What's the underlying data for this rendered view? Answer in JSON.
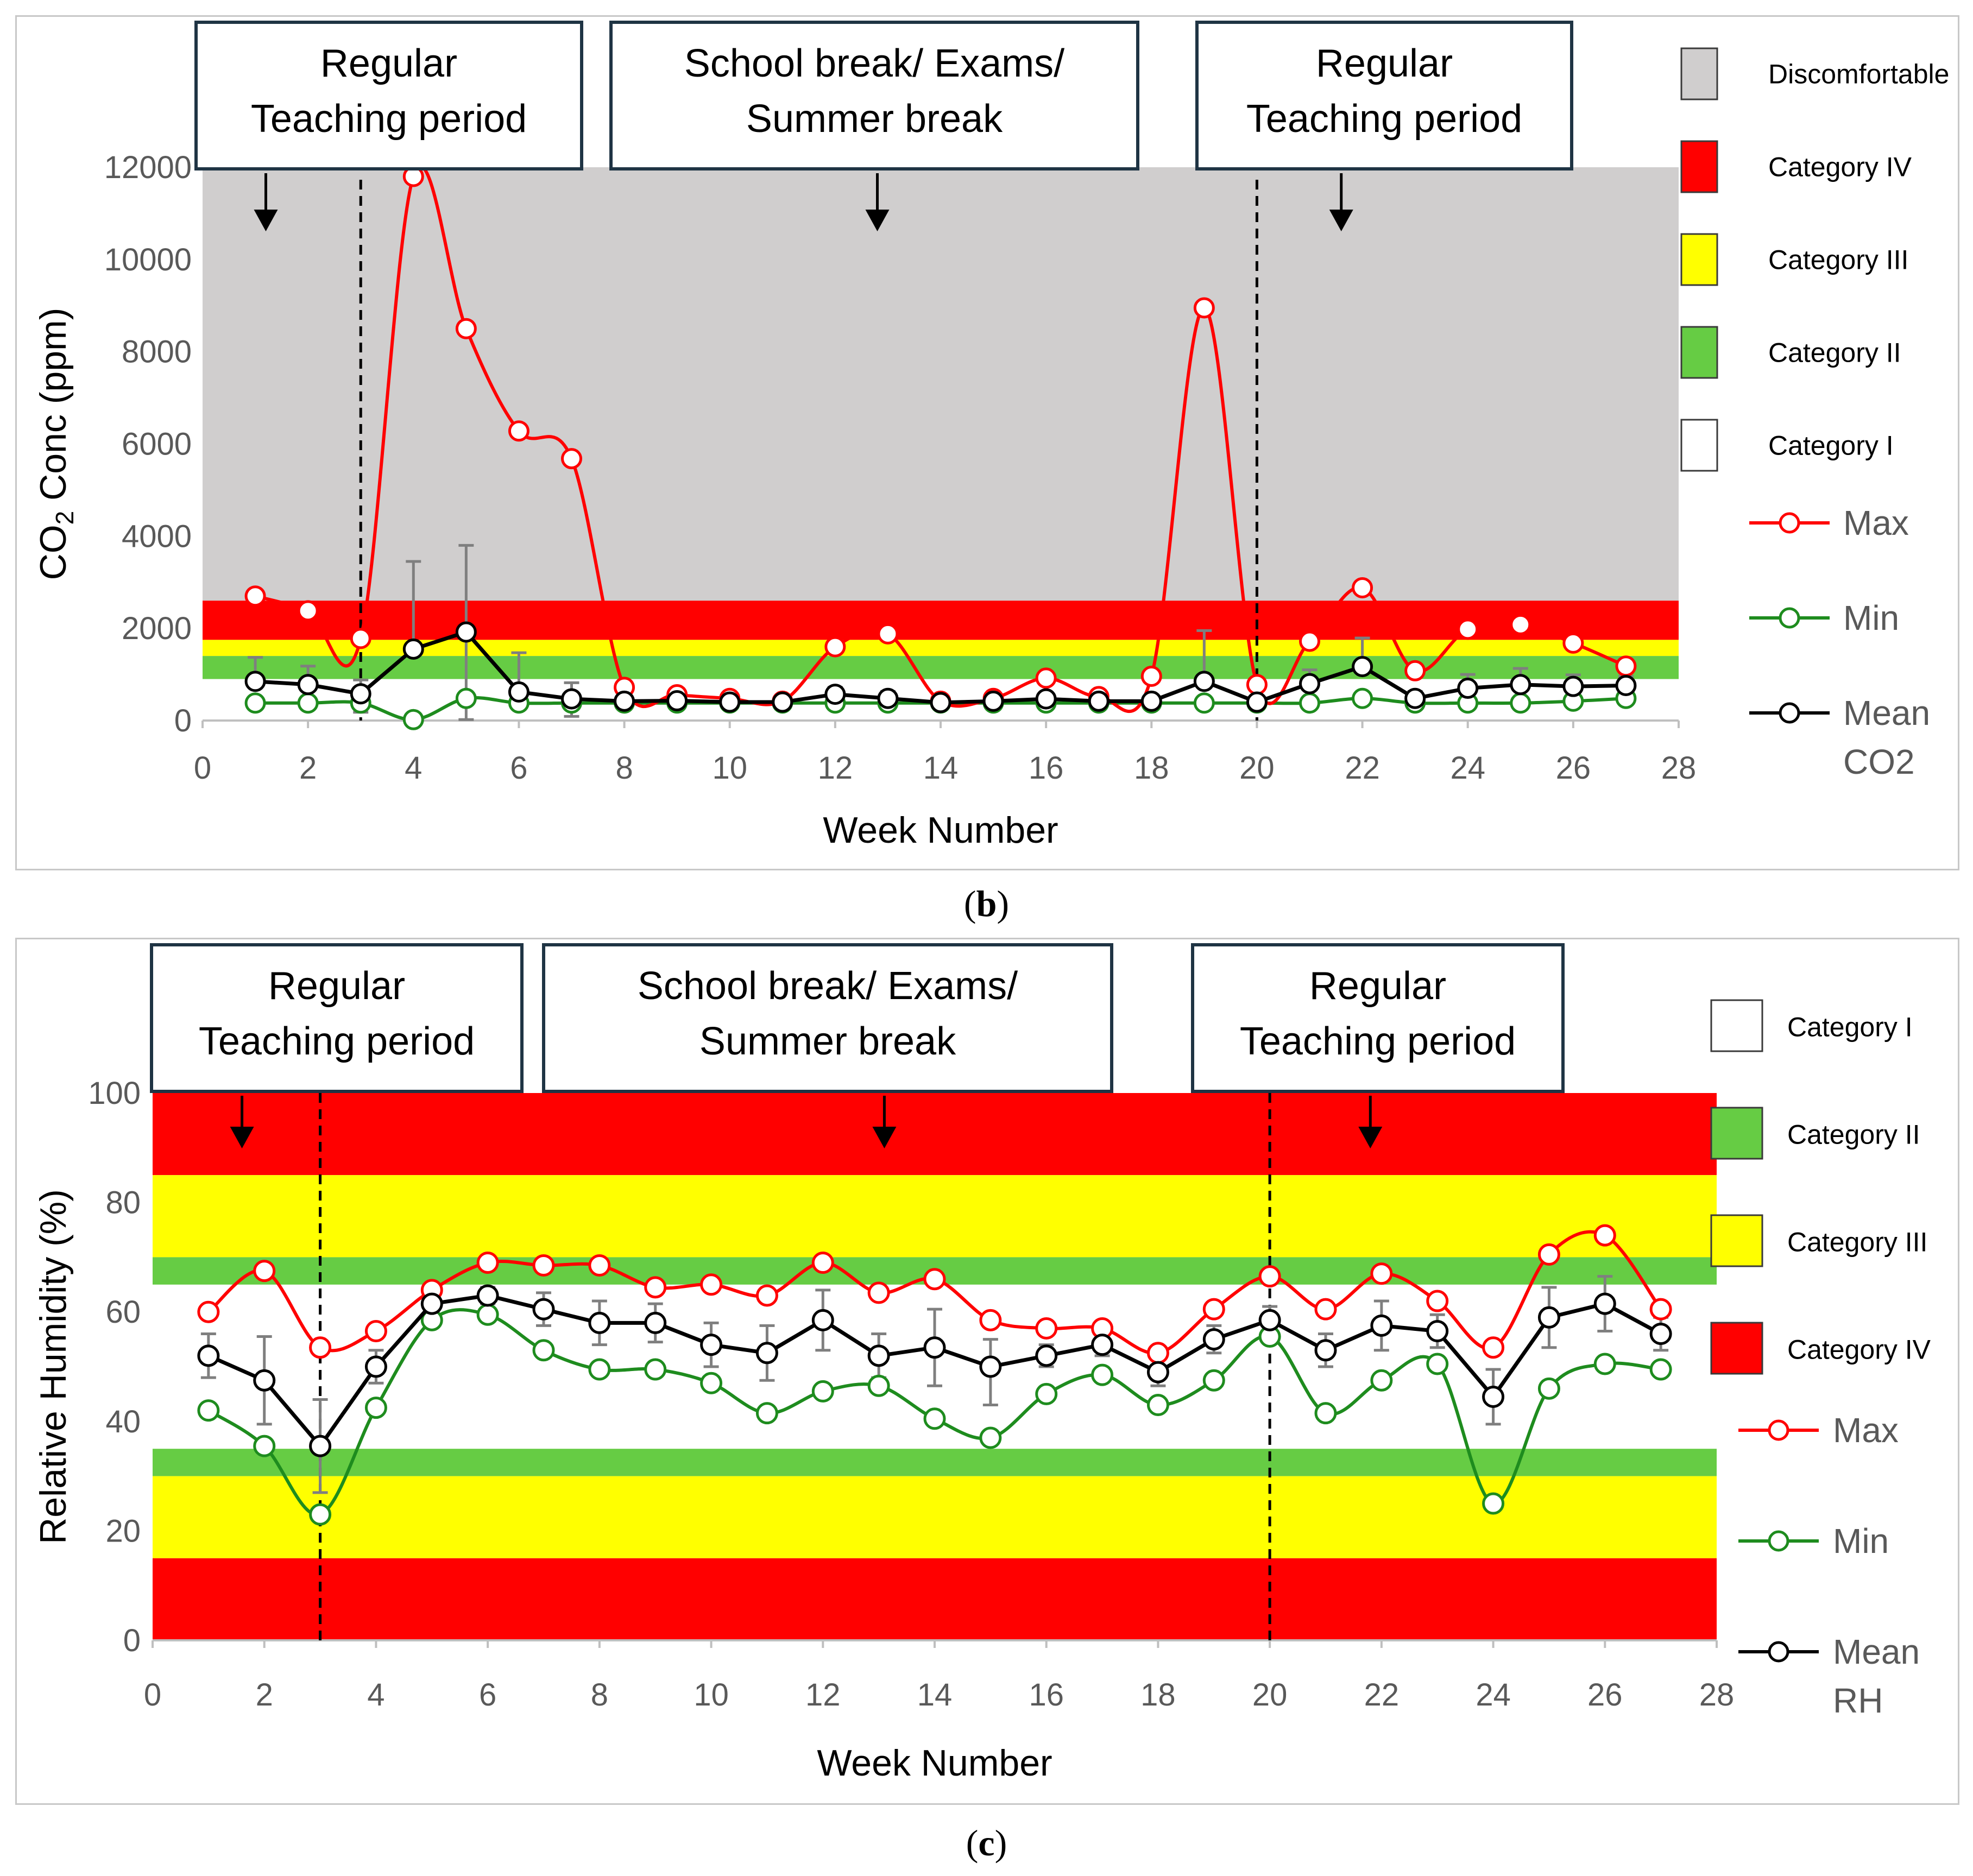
{
  "captions": {
    "b": "b",
    "c": "c"
  },
  "colors": {
    "discomfort": "#D0CECE",
    "cat4": "#FF0000",
    "cat3": "#FFFF00",
    "cat2": "#66CC44",
    "cat1": "#FFFFFF",
    "max": "#FF0000",
    "min": "#1E8C1E",
    "mean": "#000000",
    "error": "#7F7F7F"
  },
  "chart_data": [
    {
      "id": "co2",
      "type": "line",
      "xlabel": "Week Number",
      "ylabel_main": "CO",
      "ylabel_sub": "2",
      "ylabel_tail": " Conc (ppm)",
      "xlim": [
        0,
        28
      ],
      "ylim": [
        0,
        12000
      ],
      "xticks": [
        0,
        2,
        4,
        6,
        8,
        10,
        12,
        14,
        16,
        18,
        20,
        22,
        24,
        26,
        28
      ],
      "yticks": [
        0,
        2000,
        4000,
        6000,
        8000,
        10000,
        12000
      ],
      "bands": [
        {
          "from": 2600,
          "to": 12000,
          "color": "discomfort"
        },
        {
          "from": 1750,
          "to": 2600,
          "color": "cat4"
        },
        {
          "from": 1400,
          "to": 1750,
          "color": "cat3"
        },
        {
          "from": 900,
          "to": 1400,
          "color": "cat2"
        }
      ],
      "period_markers": [
        3,
        20
      ],
      "periods": [
        {
          "line1": "Regular",
          "line2": "Teaching period",
          "arrow_x": 1.2
        },
        {
          "line1": "School break/ Exams/",
          "line2": "Summer break",
          "arrow_x": 12.8
        },
        {
          "line1": "Regular",
          "line2": "Teaching period",
          "arrow_x": 21.6
        }
      ],
      "legend_categories": [
        {
          "label": "Discomfortable",
          "color": "discomfort"
        },
        {
          "label": "Category IV",
          "color": "cat4"
        },
        {
          "label": "Category III",
          "color": "cat3"
        },
        {
          "label": "Category II",
          "color": "cat2"
        },
        {
          "label": "Category I",
          "color": "cat1"
        }
      ],
      "legend_series": [
        {
          "label": "Max",
          "color": "max"
        },
        {
          "label": "Min",
          "color": "min"
        },
        {
          "label": "Mean",
          "label2": "CO2",
          "color": "mean"
        }
      ],
      "x": [
        1,
        2,
        3,
        4,
        5,
        6,
        7,
        8,
        9,
        10,
        11,
        12,
        13,
        14,
        15,
        16,
        17,
        18,
        19,
        20,
        21,
        22,
        23,
        24,
        25,
        26,
        27
      ],
      "series": [
        {
          "name": "Max",
          "color": "max",
          "values": [
            2700,
            2380,
            1780,
            11800,
            8500,
            6280,
            5680,
            720,
            560,
            480,
            420,
            1600,
            1880,
            420,
            480,
            920,
            520,
            960,
            8950,
            780,
            1720,
            2880,
            1080,
            1980,
            2080,
            1680,
            1180
          ]
        },
        {
          "name": "Min",
          "color": "min",
          "values": [
            380,
            380,
            380,
            20,
            480,
            380,
            380,
            380,
            380,
            380,
            380,
            380,
            380,
            380,
            380,
            380,
            380,
            380,
            380,
            380,
            380,
            480,
            380,
            380,
            380,
            420,
            480
          ]
        },
        {
          "name": "Mean CO2",
          "color": "mean",
          "values": [
            850,
            780,
            580,
            1550,
            1920,
            620,
            470,
            420,
            430,
            400,
            400,
            570,
            480,
            390,
            420,
            470,
            420,
            420,
            850,
            400,
            800,
            1170,
            480,
            700,
            780,
            740,
            760
          ],
          "error_up": [
            520,
            400,
            300,
            1900,
            1880,
            850,
            350,
            120,
            100,
            80,
            80,
            150,
            150,
            80,
            80,
            100,
            80,
            80,
            1100,
            100,
            300,
            620,
            150,
            300,
            350,
            250,
            200
          ],
          "error_down": [
            0,
            0,
            400,
            0,
            1900,
            0,
            380,
            0,
            0,
            0,
            0,
            0,
            0,
            0,
            0,
            0,
            0,
            0,
            0,
            0,
            0,
            0,
            0,
            0,
            0,
            0,
            0
          ]
        }
      ]
    },
    {
      "id": "rh",
      "type": "line",
      "xlabel": "Week Number",
      "ylabel": "Relative Humidity (%)",
      "xlim": [
        0,
        28
      ],
      "ylim": [
        0,
        100
      ],
      "xticks": [
        0,
        2,
        4,
        6,
        8,
        10,
        12,
        14,
        16,
        18,
        20,
        22,
        24,
        26,
        28
      ],
      "yticks": [
        0,
        20,
        40,
        60,
        80,
        100
      ],
      "bands": [
        {
          "from": 85,
          "to": 100,
          "color": "cat4"
        },
        {
          "from": 70,
          "to": 85,
          "color": "cat3"
        },
        {
          "from": 65,
          "to": 70,
          "color": "cat2"
        },
        {
          "from": 30,
          "to": 35,
          "color": "cat2"
        },
        {
          "from": 15,
          "to": 30,
          "color": "cat3"
        },
        {
          "from": 0,
          "to": 15,
          "color": "cat4"
        }
      ],
      "period_markers": [
        3,
        20
      ],
      "periods": [
        {
          "line1": "Regular",
          "line2": "Teaching period",
          "arrow_x": 1.6
        },
        {
          "line1": "School break/ Exams/",
          "line2": "Summer break",
          "arrow_x": 13.1
        },
        {
          "line1": "Regular",
          "line2": "Teaching period",
          "arrow_x": 21.8
        }
      ],
      "legend_categories": [
        {
          "label": "Category I",
          "color": "cat1"
        },
        {
          "label": "Category II",
          "color": "cat2"
        },
        {
          "label": "Category III",
          "color": "cat3"
        },
        {
          "label": "Category IV",
          "color": "cat4"
        }
      ],
      "legend_series": [
        {
          "label": "Max",
          "color": "max"
        },
        {
          "label": "Min",
          "color": "min"
        },
        {
          "label": "Mean",
          "label2": "RH",
          "color": "mean"
        }
      ],
      "x": [
        1,
        2,
        3,
        4,
        5,
        6,
        7,
        8,
        9,
        10,
        11,
        12,
        13,
        14,
        15,
        16,
        17,
        18,
        19,
        20,
        21,
        22,
        23,
        24,
        25,
        26,
        27
      ],
      "series": [
        {
          "name": "Max",
          "color": "max",
          "values": [
            60,
            67.5,
            53.5,
            56.5,
            64,
            69,
            68.5,
            68.5,
            64.5,
            65,
            63,
            69,
            63.5,
            66,
            58.5,
            57,
            57,
            52.5,
            60.5,
            66.5,
            60.5,
            67,
            62,
            53.5,
            70.5,
            74,
            60.5
          ]
        },
        {
          "name": "Min",
          "color": "min",
          "values": [
            42,
            35.5,
            23,
            42.5,
            58.5,
            59.5,
            53,
            49.5,
            49.5,
            47,
            41.5,
            45.5,
            46.5,
            40.5,
            37,
            45,
            48.5,
            43,
            47.5,
            55.5,
            41.5,
            47.5,
            50.5,
            25,
            46,
            50.5,
            49.5
          ]
        },
        {
          "name": "Mean RH",
          "color": "mean",
          "values": [
            52,
            47.5,
            35.5,
            50,
            61.5,
            63,
            60.5,
            58,
            58,
            54,
            52.5,
            58.5,
            52,
            53.5,
            50,
            52,
            54,
            49,
            55,
            58.5,
            53,
            57.5,
            56.5,
            44.5,
            59,
            61.5,
            56
          ],
          "error_up": [
            4,
            8,
            8.5,
            3,
            3,
            1.5,
            3,
            4,
            3.5,
            4,
            5,
            5.5,
            4,
            7,
            5,
            2,
            2,
            2.5,
            2.5,
            2.5,
            3,
            4.5,
            3,
            5,
            5.5,
            5,
            3
          ],
          "error_down": [
            4,
            8,
            8.5,
            3,
            3,
            1.5,
            3,
            4,
            3.5,
            4,
            5,
            5.5,
            4,
            7,
            7,
            2,
            2,
            2.5,
            2.5,
            2.5,
            3,
            4.5,
            3,
            5,
            5.5,
            5,
            3
          ]
        }
      ]
    }
  ]
}
